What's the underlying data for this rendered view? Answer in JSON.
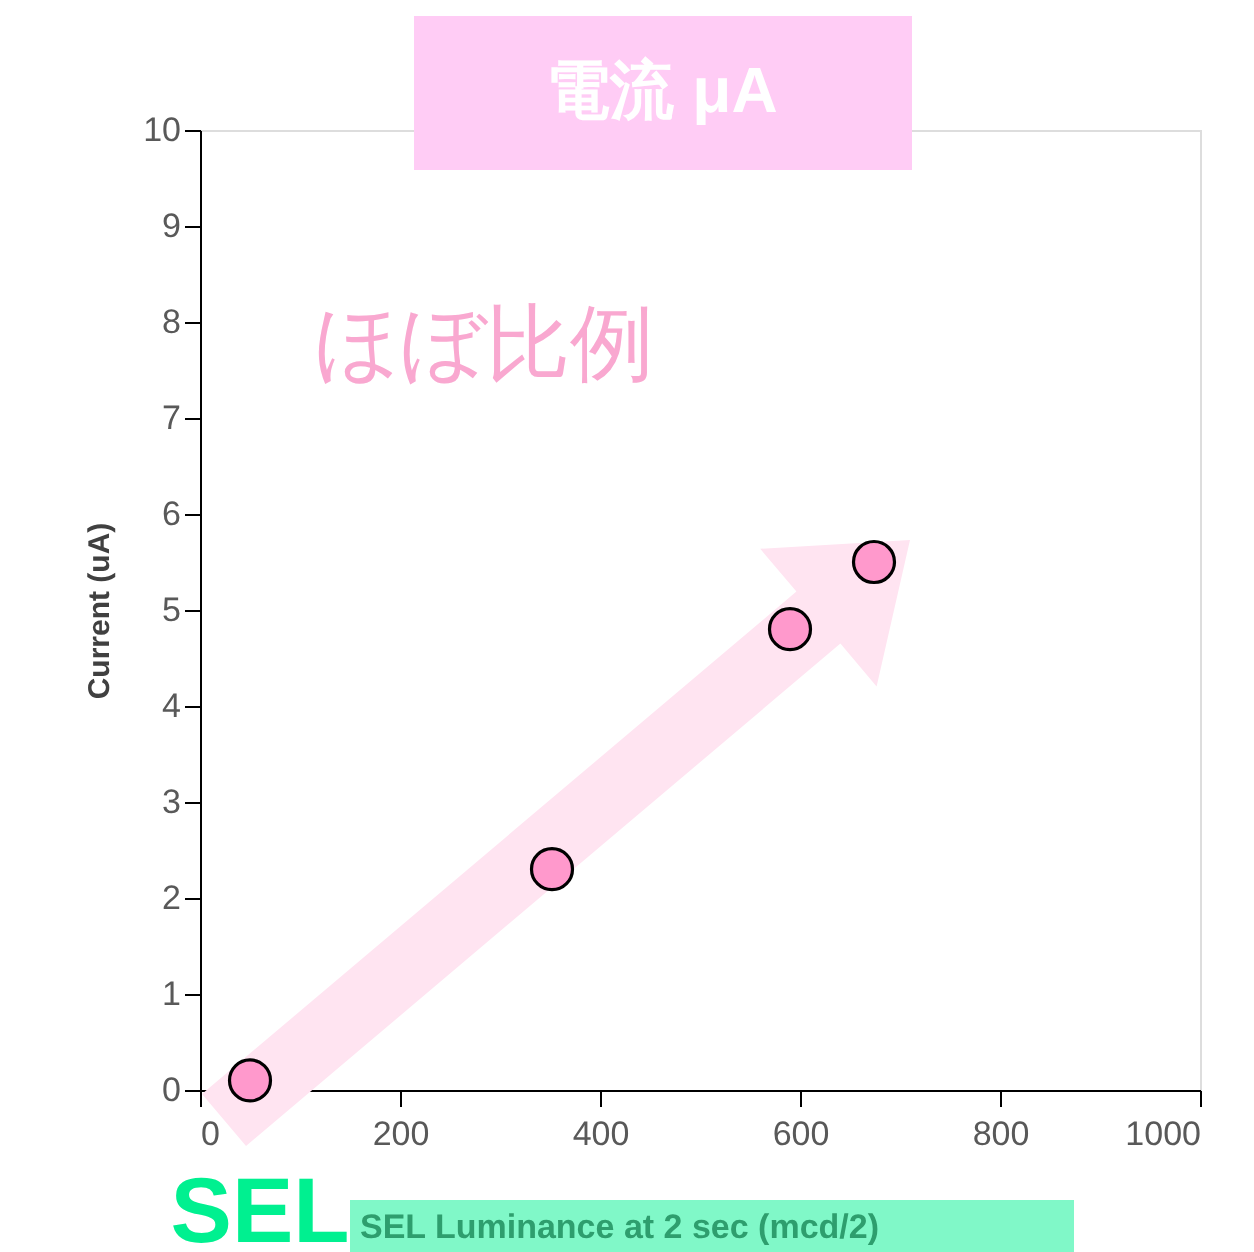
{
  "chart_data": {
    "type": "scatter",
    "title": "電流 μA",
    "xlabel": "SEL Luminance at 2 sec (mcd/2)",
    "ylabel": "Current (uA)",
    "x": [
      50,
      352,
      590,
      674
    ],
    "series": [
      {
        "color": "#ff99cc",
        "values": [
          0.1,
          2.3,
          4.8,
          5.5
        ]
      }
    ],
    "xlim": [
      0,
      1000
    ],
    "xticks": [
      0,
      200,
      400,
      600,
      800,
      1000
    ],
    "ylim": [
      0,
      10
    ],
    "yticks": [
      0,
      1,
      2,
      3,
      4,
      5,
      6,
      7,
      8,
      9,
      10
    ],
    "marker": "circle",
    "grid": false,
    "annotations": [
      "ほぼ比例",
      "SEL"
    ]
  }
}
